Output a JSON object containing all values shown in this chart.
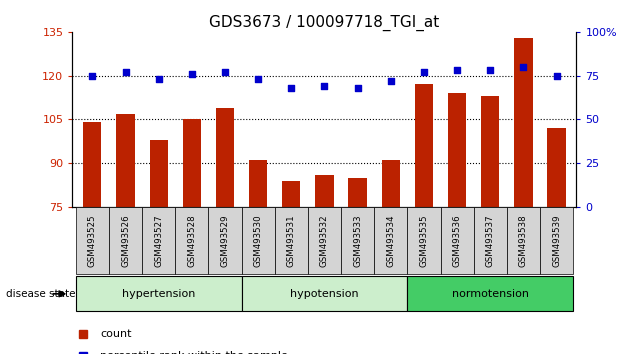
{
  "title": "GDS3673 / 100097718_TGI_at",
  "samples": [
    "GSM493525",
    "GSM493526",
    "GSM493527",
    "GSM493528",
    "GSM493529",
    "GSM493530",
    "GSM493531",
    "GSM493532",
    "GSM493533",
    "GSM493534",
    "GSM493535",
    "GSM493536",
    "GSM493537",
    "GSM493538",
    "GSM493539"
  ],
  "counts": [
    104,
    107,
    98,
    105,
    109,
    91,
    84,
    86,
    85,
    91,
    117,
    114,
    113,
    133,
    102
  ],
  "percentiles": [
    75,
    77,
    73,
    76,
    77,
    73,
    68,
    69,
    68,
    72,
    77,
    78,
    78,
    80,
    75
  ],
  "group_labels": [
    "hypertension",
    "hypotension",
    "normotension"
  ],
  "group_ranges": [
    [
      0,
      5
    ],
    [
      5,
      10
    ],
    [
      10,
      15
    ]
  ],
  "group_colors": [
    "#cceecc",
    "#cceecc",
    "#44cc66"
  ],
  "ylim_left": [
    75,
    135
  ],
  "ylim_right": [
    0,
    100
  ],
  "yticks_left": [
    75,
    90,
    105,
    120,
    135
  ],
  "yticks_right": [
    0,
    25,
    50,
    75,
    100
  ],
  "bar_color": "#bb2200",
  "dot_color": "#0000cc",
  "title_fontsize": 11,
  "axis_color_left": "#cc2200",
  "axis_color_right": "#0000cc"
}
